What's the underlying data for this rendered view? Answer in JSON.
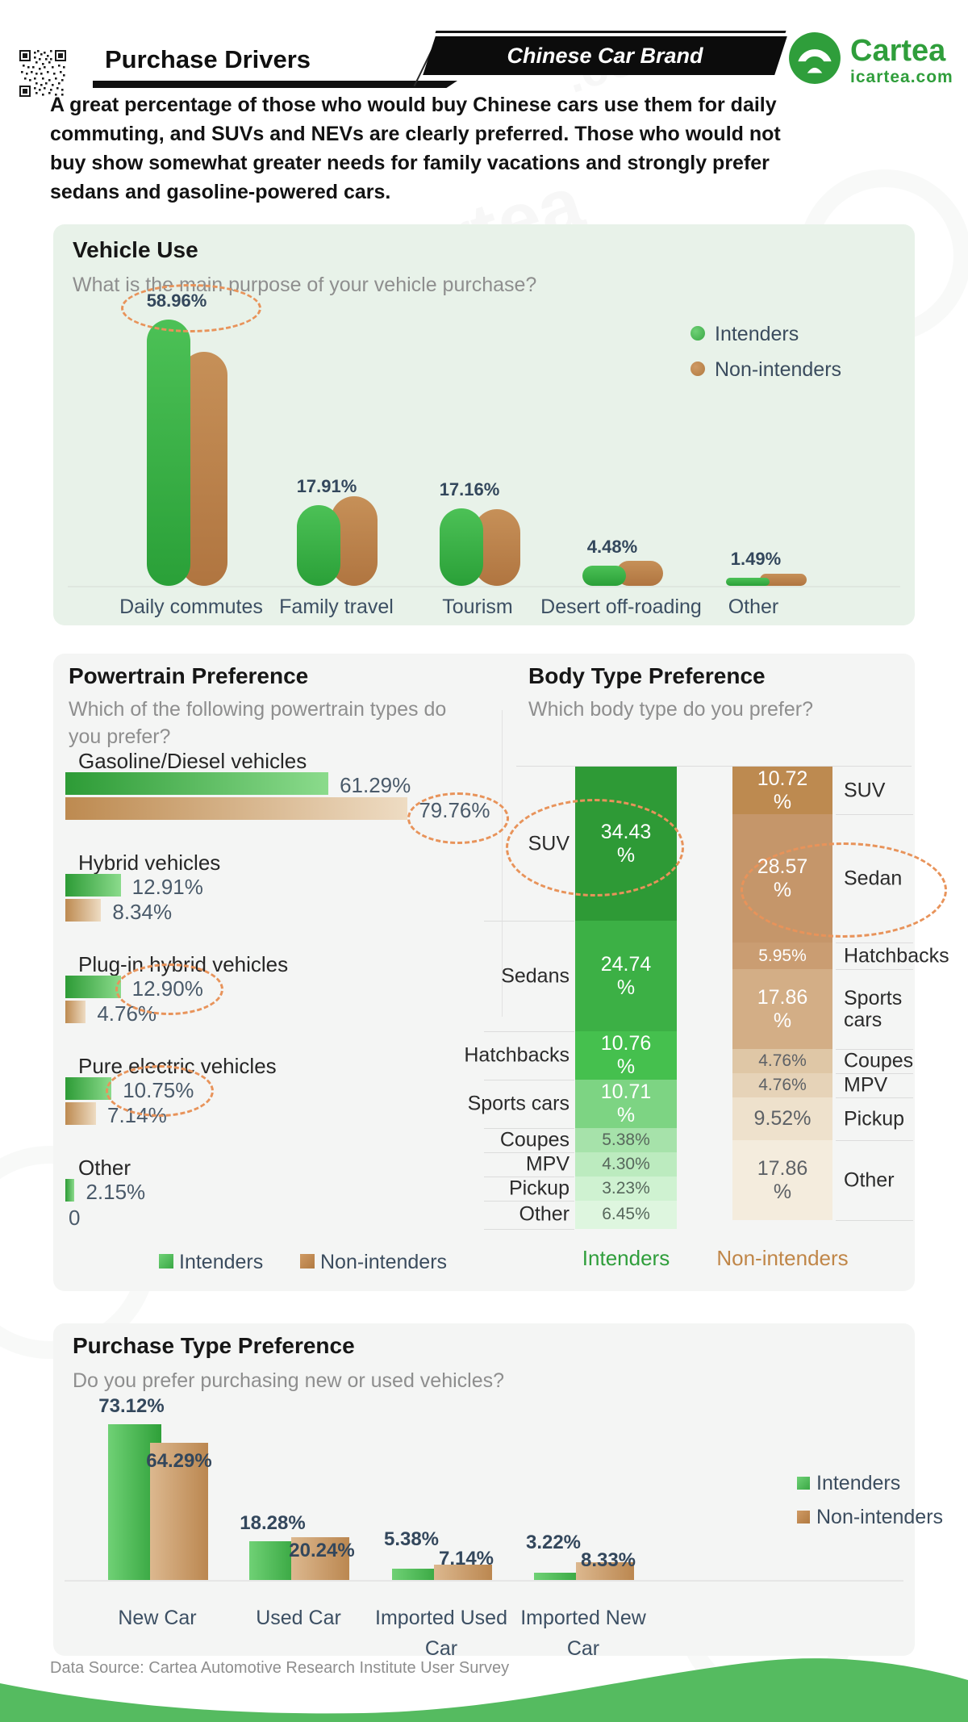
{
  "header": {
    "title": "Purchase Drivers",
    "banner": "Chinese Car Brand",
    "brand": "Cartea",
    "brand_domain": "icartea.com"
  },
  "intro": "A great percentage of those who would buy Chinese cars use them for daily\ncommuting, and SUVs and NEVs are clearly preferred. Those who would not\nbuy show somewhat greater needs for family vacations and strongly prefer\nsedans and gasoline-powered cars.",
  "legend": {
    "intenders": "Intenders",
    "non_intenders": "Non-intenders"
  },
  "footer": {
    "source": "Data Source: Cartea Automotive Research Institute User Survey"
  },
  "colors": {
    "accent_green": "#2f9e3b",
    "accent_brown": "#bd8a50",
    "highlight_dash": "#e8935a",
    "value_text": "#33475c",
    "wave_green": "#55bb60",
    "card_mint": "#e8f2e9",
    "card_gray": "#f4f5f4",
    "green_segments": [
      "#2e9a36",
      "#3cb045",
      "#45c04e",
      "#7dd483",
      "#a6e2aa",
      "#bcebbf",
      "#cff2d1",
      "#def6df"
    ],
    "brown_segments": [
      "#bd8a50",
      "#c5966a",
      "#ca9d72",
      "#d3ae86",
      "#dfc7a6",
      "#e6d3b8",
      "#eee1cc",
      "#f4ecdd"
    ]
  },
  "watermark": {
    "text": "Cartea",
    "domain": "icartea.com"
  },
  "chart_data": [
    {
      "id": "vehicle_use",
      "type": "bar",
      "title": "Vehicle Use",
      "subtitle": "What is the main purpose of your vehicle purchase?",
      "categories": [
        "Daily commutes",
        "Family travel",
        "Tourism",
        "Desert off-roading",
        "Other"
      ],
      "series": [
        {
          "name": "Intenders",
          "values": [
            58.96,
            17.91,
            17.16,
            4.48,
            1.49
          ],
          "labels": [
            "58.96%",
            "17.91%",
            "17.16%",
            "4.48%",
            "1.49%"
          ]
        },
        {
          "name": "Non-intenders",
          "values_estimated_unlabeled": [
            51.8,
            19.8,
            17.0,
            5.5,
            2.7
          ]
        }
      ],
      "highlighted_label": "58.96%",
      "legend_position": "right",
      "ylim": [
        0,
        60
      ]
    },
    {
      "id": "powertrain",
      "type": "bar-horizontal",
      "title": "Powertrain Preference",
      "subtitle": "Which of the following powertrain types do\nyou prefer?",
      "categories": [
        "Gasoline/Diesel vehicles",
        "Hybrid vehicles",
        "Plug-in hybrid vehicles",
        "Pure electric vehicles",
        "Other"
      ],
      "series": [
        {
          "name": "Intenders",
          "values": [
            61.29,
            12.91,
            12.9,
            10.75,
            2.15
          ],
          "labels": [
            "61.29%",
            "12.91%",
            "12.90%",
            "10.75%",
            "2.15%"
          ]
        },
        {
          "name": "Non-intenders",
          "values": [
            79.76,
            8.34,
            4.76,
            7.14,
            0
          ],
          "labels": [
            "79.76%",
            "8.34%",
            "4.76%",
            "7.14%",
            "0"
          ]
        }
      ],
      "highlighted_labels": [
        "79.76%",
        "12.90%",
        "10.75%"
      ],
      "xlim": [
        0,
        80
      ],
      "legend_position": "bottom"
    },
    {
      "id": "body_type",
      "type": "stacked-column",
      "title": "Body Type Preference",
      "subtitle": "Which body type do you prefer?",
      "columns": [
        {
          "name": "Intenders",
          "label_side": "left",
          "categories": [
            "SUV",
            "Sedans",
            "Hatchbacks",
            "Sports cars",
            "Coupes",
            "MPV",
            "Pickup",
            "Other"
          ],
          "values": [
            34.43,
            24.74,
            10.76,
            10.71,
            5.38,
            4.3,
            3.23,
            6.45
          ],
          "labels": [
            "34.43\n%",
            "24.74\n%",
            "10.76\n%",
            "10.71\n%",
            "5.38%",
            "4.30%",
            "3.23%",
            "6.45%"
          ]
        },
        {
          "name": "Non-intenders",
          "label_side": "right",
          "categories": [
            "SUV",
            "Sedan",
            "Hatchbacks",
            "Sports cars",
            "Coupes",
            "MPV",
            "Pickup",
            "Other"
          ],
          "values": [
            10.72,
            28.57,
            5.95,
            17.86,
            4.76,
            4.76,
            9.52,
            17.86
          ],
          "labels": [
            "10.72\n%",
            "28.57\n%",
            "5.95%",
            "17.86\n%",
            "4.76%",
            "4.76%",
            "9.52%",
            "17.86\n%"
          ]
        }
      ],
      "highlighted": [
        "Intenders SUV 34.43%",
        "Non-intenders Sedan 28.57%"
      ]
    },
    {
      "id": "purchase_type",
      "type": "bar",
      "title": "Purchase Type Preference",
      "subtitle": "Do you prefer purchasing new or used vehicles?",
      "categories": [
        "New Car",
        "Used Car",
        "Imported Used Car",
        "Imported New Car"
      ],
      "series": [
        {
          "name": "Intenders",
          "values": [
            73.12,
            18.28,
            5.38,
            3.22
          ],
          "labels": [
            "73.12%",
            "18.28%",
            "5.38%",
            "3.22%"
          ]
        },
        {
          "name": "Non-intenders",
          "values": [
            64.29,
            20.24,
            7.14,
            8.33
          ],
          "labels": [
            "64.29%",
            "20.24%",
            "7.14%",
            "8.33%"
          ]
        }
      ],
      "legend_position": "right",
      "ylim": [
        0,
        75
      ]
    }
  ]
}
